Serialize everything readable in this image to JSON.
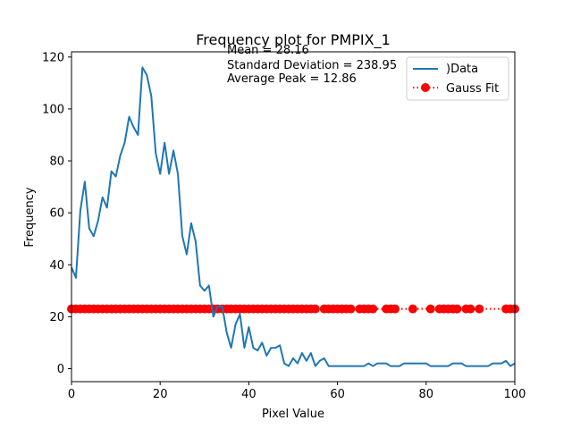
{
  "chart_data": {
    "type": "line",
    "title": "Frequency plot for PMPIX_1",
    "xlabel": "Pixel Value",
    "ylabel": "Frequency",
    "xlim": [
      0,
      100
    ],
    "ylim": [
      -5,
      122
    ],
    "xticks": [
      0,
      20,
      40,
      60,
      80,
      100
    ],
    "yticks": [
      0,
      20,
      40,
      60,
      80,
      100,
      120
    ],
    "grid": false,
    "legend_position": "top-right",
    "annotations": [
      "Mean = 28.16",
      "Standard Deviation = 238.95",
      "Average Peak = 12.86"
    ],
    "series": [
      {
        "name": ")Data",
        "kind": "line",
        "color": "#1f77b4",
        "x": [
          0,
          1,
          2,
          3,
          4,
          5,
          6,
          7,
          8,
          9,
          10,
          11,
          12,
          13,
          14,
          15,
          16,
          17,
          18,
          19,
          20,
          21,
          22,
          23,
          24,
          25,
          26,
          27,
          28,
          29,
          30,
          31,
          32,
          33,
          34,
          35,
          36,
          37,
          38,
          39,
          40,
          41,
          42,
          43,
          44,
          45,
          46,
          47,
          48,
          49,
          50,
          51,
          52,
          53,
          54,
          55,
          56,
          57,
          58,
          59,
          60,
          61,
          62,
          63,
          64,
          65,
          66,
          67,
          68,
          69,
          70,
          71,
          72,
          73,
          74,
          75,
          76,
          77,
          78,
          79,
          80,
          81,
          82,
          83,
          84,
          85,
          86,
          87,
          88,
          89,
          90,
          91,
          92,
          93,
          94,
          95,
          96,
          97,
          98,
          99,
          100
        ],
        "y": [
          39,
          35,
          61,
          72,
          54,
          51,
          57,
          66,
          62,
          76,
          74,
          82,
          87,
          97,
          93,
          90,
          116,
          113,
          105,
          83,
          75,
          87,
          75,
          84,
          75,
          51,
          44,
          56,
          49,
          32,
          30,
          32,
          20,
          24,
          24,
          14,
          8,
          17,
          21,
          8,
          16,
          8,
          7,
          10,
          5,
          8,
          8,
          9,
          2,
          1,
          4,
          2,
          6,
          3,
          6,
          1,
          3,
          4,
          1,
          1,
          1,
          1,
          1,
          1,
          1,
          1,
          1,
          2,
          1,
          2,
          2,
          2,
          1,
          1,
          1,
          2,
          2,
          2,
          2,
          2,
          2,
          1,
          1,
          1,
          1,
          1,
          2,
          2,
          2,
          1,
          1,
          1,
          1,
          1,
          1,
          2,
          2,
          2,
          3,
          1,
          2
        ]
      },
      {
        "name": "Gauss Fit",
        "kind": "dotted-markers",
        "color": "#ff0000",
        "y_value": 23,
        "x": [
          0,
          1,
          2,
          3,
          4,
          5,
          6,
          7,
          8,
          9,
          10,
          11,
          12,
          13,
          14,
          15,
          16,
          17,
          18,
          19,
          20,
          21,
          22,
          23,
          24,
          25,
          26,
          27,
          28,
          29,
          30,
          31,
          32,
          33,
          34,
          35,
          36,
          37,
          38,
          39,
          40,
          41,
          42,
          43,
          44,
          45,
          46,
          47,
          48,
          49,
          50,
          51,
          52,
          53,
          54,
          55,
          57,
          58,
          59,
          60,
          61,
          62,
          63,
          65,
          66,
          67,
          68,
          71,
          72,
          73,
          77,
          81,
          83,
          84,
          85,
          86,
          87,
          89,
          90,
          92,
          98,
          99,
          100
        ]
      }
    ]
  }
}
